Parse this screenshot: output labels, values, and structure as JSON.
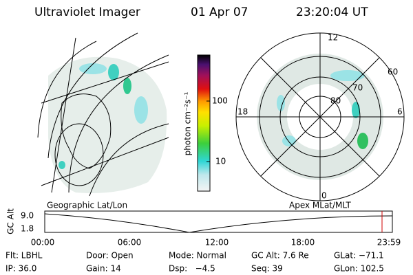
{
  "header": {
    "instrument": "Ultraviolet Imager",
    "date": "01 Apr 07",
    "time": "23:20:04 UT"
  },
  "colorbar": {
    "label": "photon cm⁻²s⁻¹",
    "ticks": [
      "100",
      "10"
    ]
  },
  "polar": {
    "mlt_labels": [
      "12",
      "18",
      "6",
      "0"
    ],
    "lat_labels": [
      "60",
      "70",
      "80"
    ]
  },
  "maps": {
    "left_caption": "Geographic Lat/Lon",
    "right_caption": "Apex MLat/MLT"
  },
  "orbit": {
    "axis_label": "GC Alt",
    "y_labels": [
      "9.0",
      "1.8"
    ],
    "x_labels": [
      "00:00",
      "06:00",
      "12:00",
      "18:00",
      "23:59"
    ]
  },
  "status": [
    [
      "Flt: LBHL",
      "Door: Open",
      "Mode: Normal",
      "GC Alt: 7.6 Re",
      "GLat: −71.1"
    ],
    [
      "IP: 36.0",
      "Gain: 14",
      "Dsp:   −4.5",
      "Seq: 39",
      "GLon: 102.5"
    ]
  ]
}
